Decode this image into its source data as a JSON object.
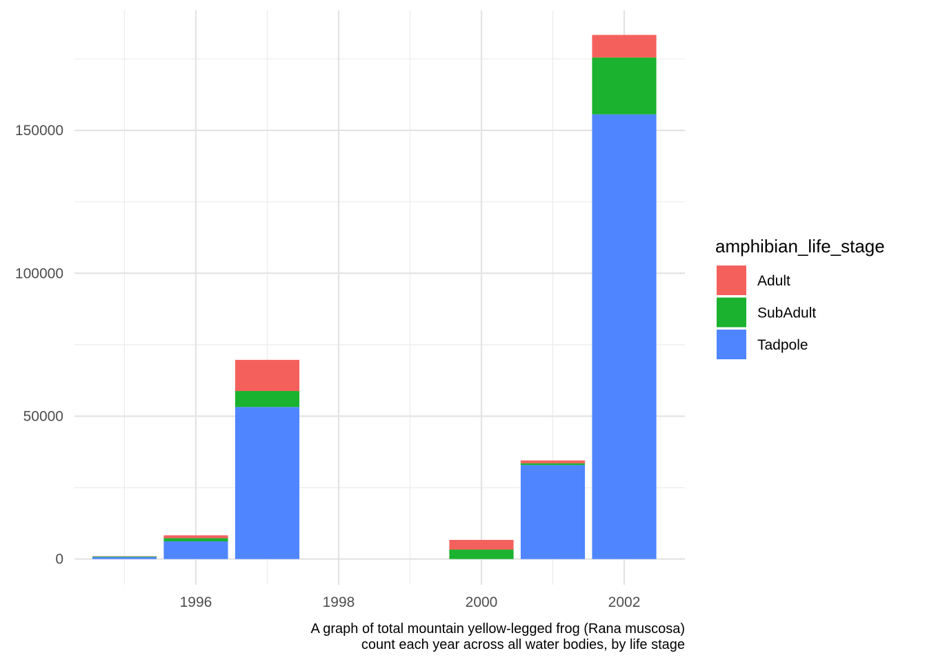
{
  "chart_data": {
    "type": "bar",
    "stacked": true,
    "x": [
      1995,
      1996,
      1997,
      2000,
      2001,
      2002
    ],
    "series": [
      {
        "name": "Tadpole",
        "color": "#4F86FF",
        "values": [
          700,
          6200,
          53200,
          0,
          32900,
          155600
        ]
      },
      {
        "name": "SubAdult",
        "color": "#1AB22F",
        "values": [
          200,
          1100,
          5600,
          3300,
          600,
          19900
        ]
      },
      {
        "name": "Adult",
        "color": "#F4615C",
        "values": [
          100,
          1000,
          10900,
          3400,
          1000,
          7900
        ]
      }
    ],
    "legend": {
      "title": "amphibian_life_stage",
      "order": [
        "Adult",
        "SubAdult",
        "Tadpole"
      ],
      "position": "right"
    },
    "xticks": [
      1996,
      1998,
      2000,
      2002
    ],
    "xtick_labels": [
      "1996",
      "1998",
      "2000",
      "2002"
    ],
    "yticks": [
      0,
      50000,
      100000,
      150000
    ],
    "ytick_labels": [
      "0",
      "50000",
      "100000",
      "150000"
    ],
    "xlim": [
      1994.3,
      2002.85
    ],
    "ylim": [
      -9000,
      192000
    ],
    "grid": true,
    "caption": [
      "A graph of total mountain yellow-legged frog (Rana muscosa)",
      "count each year across all water bodies, by life stage"
    ]
  }
}
